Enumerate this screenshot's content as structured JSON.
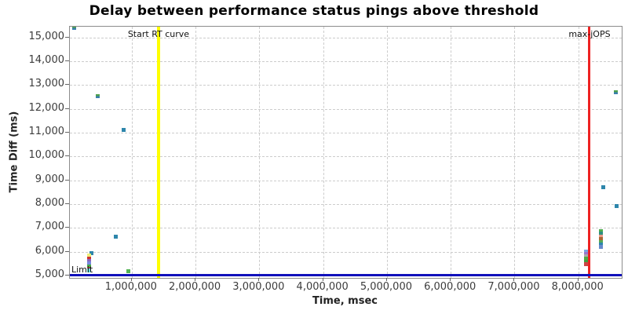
{
  "page": {
    "background": "#ffffff"
  },
  "chart_data": {
    "type": "scatter",
    "title": "Delay between performance status pings above threshold",
    "xlabel": "Time, msec",
    "ylabel": "Time Diff (ms)",
    "xlim": [
      30000,
      8680000
    ],
    "ylim": [
      4900,
      15450
    ],
    "grid": {
      "enabled": true,
      "style": "dashed",
      "color": "#cccccc"
    },
    "x_ticks": [
      {
        "value": 1000000,
        "label": "1,000,000"
      },
      {
        "value": 2000000,
        "label": "2,000,000"
      },
      {
        "value": 3000000,
        "label": "3,000,000"
      },
      {
        "value": 4000000,
        "label": "4,000,000"
      },
      {
        "value": 5000000,
        "label": "5,000,000"
      },
      {
        "value": 6000000,
        "label": "6,000,000"
      },
      {
        "value": 7000000,
        "label": "7,000,000"
      },
      {
        "value": 8000000,
        "label": "8,000,000"
      }
    ],
    "y_ticks": [
      {
        "value": 5000,
        "label": "5,000"
      },
      {
        "value": 6000,
        "label": "6,000"
      },
      {
        "value": 7000,
        "label": "7,000"
      },
      {
        "value": 8000,
        "label": "8,000"
      },
      {
        "value": 9000,
        "label": "9,000"
      },
      {
        "value": 10000,
        "label": "10,000"
      },
      {
        "value": 11000,
        "label": "11,000"
      },
      {
        "value": 12000,
        "label": "12,000"
      },
      {
        "value": 13000,
        "label": "13,000"
      },
      {
        "value": 14000,
        "label": "14,000"
      },
      {
        "value": 15000,
        "label": "15,000"
      }
    ],
    "reference_lines": [
      {
        "orientation": "vertical",
        "value": 1420000,
        "color": "#ffff00",
        "thickness": 4,
        "label": "Start RT curve",
        "label_color": "#111111"
      },
      {
        "orientation": "vertical",
        "value": 8175000,
        "color": "#ee2222",
        "thickness": 3,
        "label": "max-jOPS",
        "label_color": "#111111"
      },
      {
        "orientation": "horizontal",
        "value": 5000,
        "color": "#1111bb",
        "thickness": 3,
        "label": "Limit",
        "label_color": "#111111"
      }
    ],
    "points": [
      {
        "x": 98000,
        "y": 15385,
        "colors": [
          "#4fa14f",
          "#3a7fae"
        ]
      },
      {
        "x": 461000,
        "y": 12530,
        "colors": [
          "#4fa14f",
          "#3a7fae"
        ]
      },
      {
        "x": 879000,
        "y": 11100,
        "colors": [
          "#2e86ab"
        ]
      },
      {
        "x": 750000,
        "y": 6615,
        "colors": [
          "#2e86ab"
        ]
      },
      {
        "x": 374000,
        "y": 5955,
        "colors": [
          "#2e86ab"
        ]
      },
      {
        "x": 947000,
        "y": 5164,
        "colors": [
          "#55b555"
        ]
      },
      {
        "x": 337000,
        "y": 5855,
        "colors": [
          "#f0ee77"
        ]
      },
      {
        "x": 331000,
        "y": 5708,
        "colors": [
          "#cc3333"
        ]
      },
      {
        "x": 331000,
        "y": 5609,
        "colors": [
          "#8866bb"
        ]
      },
      {
        "x": 331000,
        "y": 5510,
        "colors": [
          "#7788dd"
        ]
      },
      {
        "x": 331000,
        "y": 5362,
        "colors": [
          "#44aa44"
        ]
      },
      {
        "x": 331000,
        "y": 5279,
        "colors": [
          "#994444"
        ]
      },
      {
        "x": 331000,
        "y": 5197,
        "colors": [
          "#66dddd"
        ]
      },
      {
        "x": 8126000,
        "y": 6004,
        "colors": [
          "#7aa7e0"
        ]
      },
      {
        "x": 8126000,
        "y": 5905,
        "colors": [
          "#9977cc"
        ]
      },
      {
        "x": 8126000,
        "y": 5806,
        "colors": [
          "#aaaaaa"
        ]
      },
      {
        "x": 8126000,
        "y": 5708,
        "colors": [
          "#4faa44"
        ]
      },
      {
        "x": 8126000,
        "y": 5592,
        "colors": [
          "#3f9f3f"
        ]
      },
      {
        "x": 8126000,
        "y": 5477,
        "colors": [
          "#cc4444"
        ]
      },
      {
        "x": 8348000,
        "y": 6861,
        "colors": [
          "#4fae4f"
        ]
      },
      {
        "x": 8348000,
        "y": 6762,
        "colors": [
          "#2f8f7f"
        ]
      },
      {
        "x": 8348000,
        "y": 6647,
        "colors": [
          "#ee9988"
        ]
      },
      {
        "x": 8348000,
        "y": 6532,
        "colors": [
          "#aa6633"
        ]
      },
      {
        "x": 8348000,
        "y": 6416,
        "colors": [
          "#55aa55"
        ]
      },
      {
        "x": 8348000,
        "y": 6301,
        "colors": [
          "#2e86ab"
        ]
      },
      {
        "x": 8348000,
        "y": 6186,
        "colors": [
          "#6688cc"
        ]
      },
      {
        "x": 8582000,
        "y": 12713,
        "colors": [
          "#4fa14f",
          "#3a7fae"
        ]
      },
      {
        "x": 8391000,
        "y": 8708,
        "colors": [
          "#2e86ab"
        ]
      },
      {
        "x": 8600000,
        "y": 7917,
        "colors": [
          "#2e86ab"
        ]
      }
    ]
  }
}
